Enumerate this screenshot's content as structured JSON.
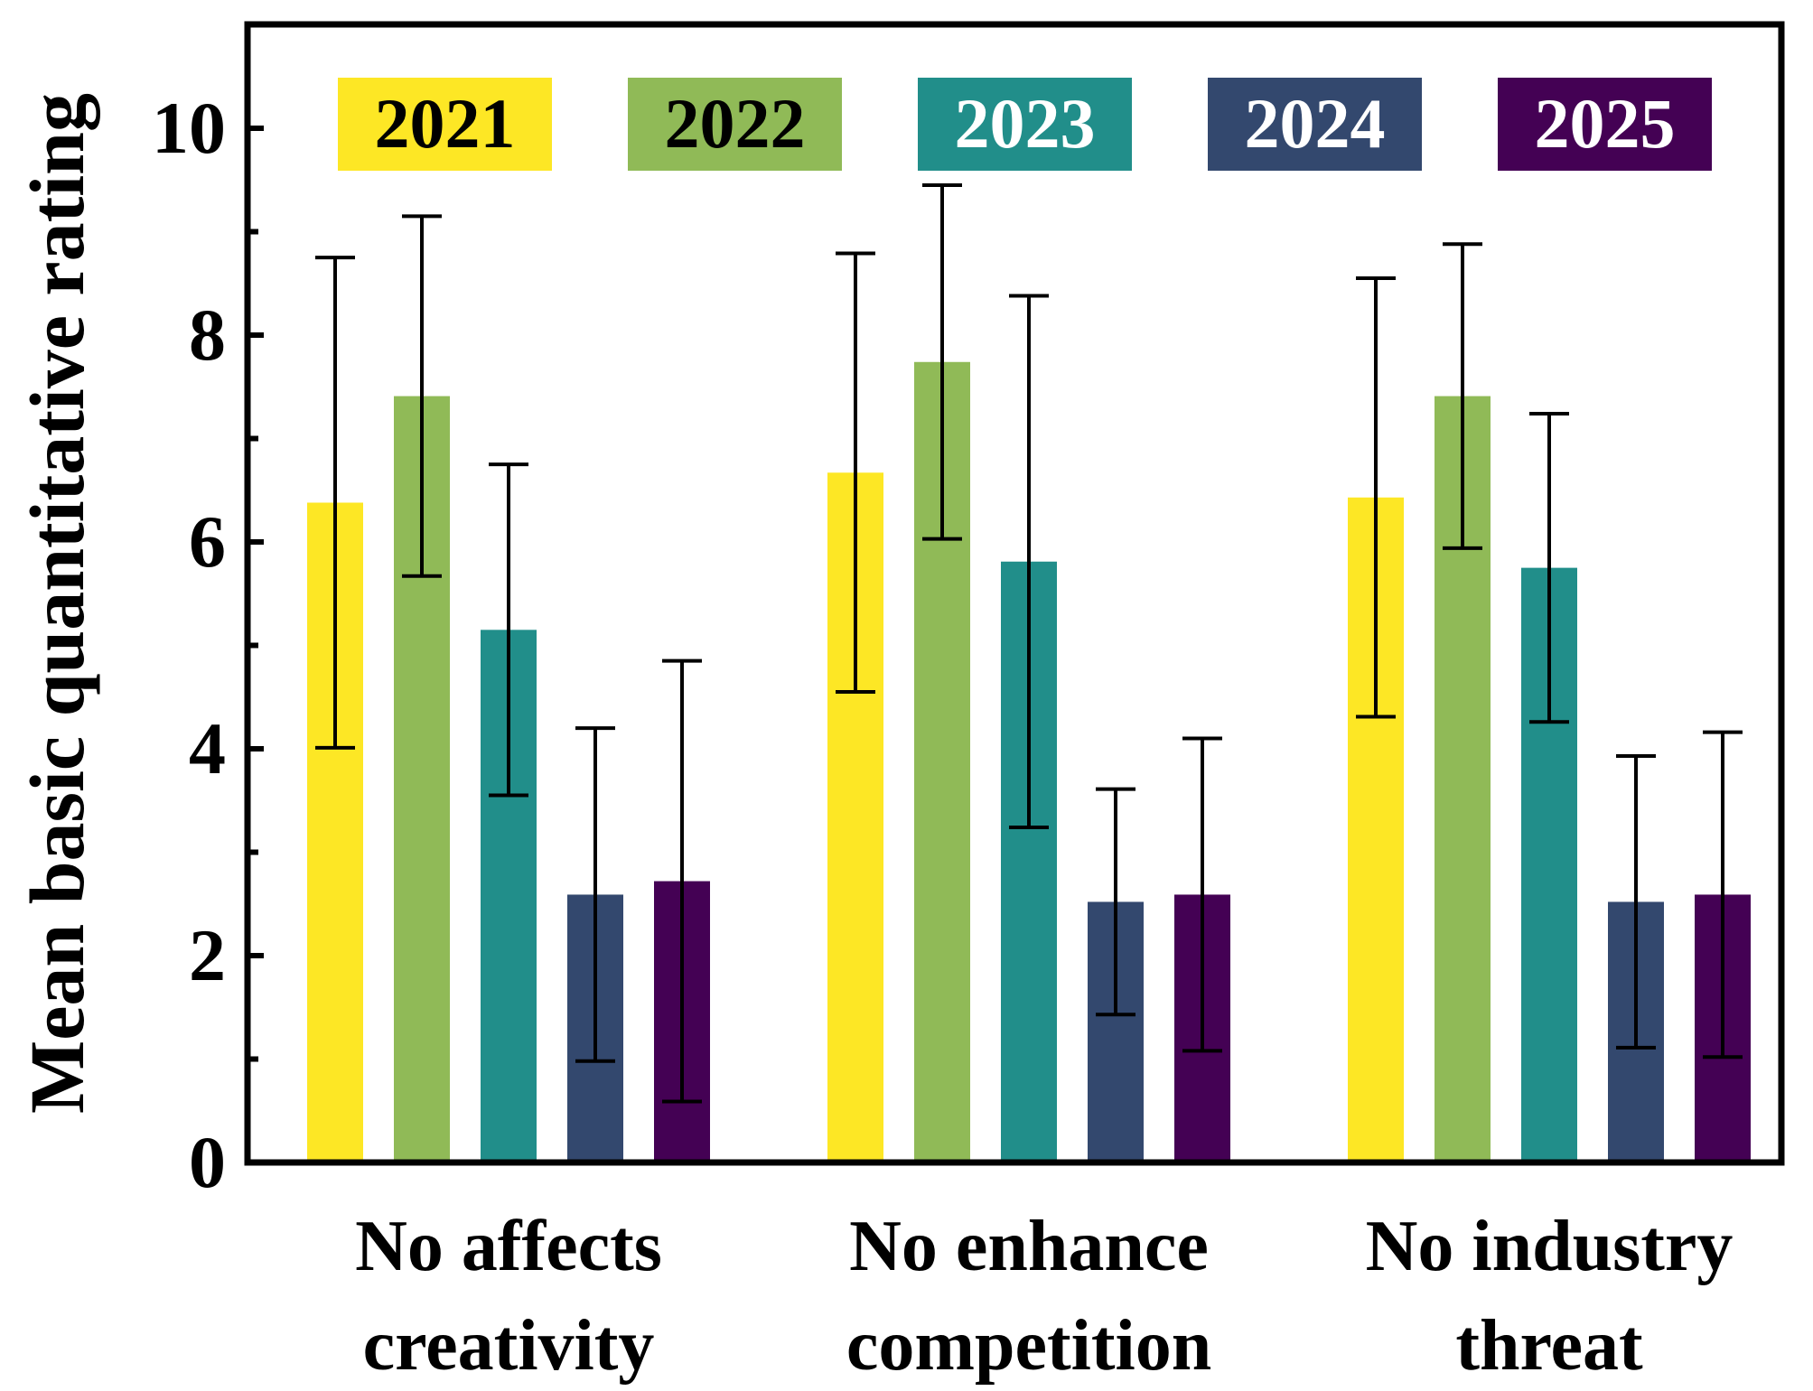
{
  "chart_data": {
    "type": "bar",
    "title": "",
    "xlabel": "",
    "ylabel": "Mean basic quantitative rating",
    "ylim": [
      0,
      11
    ],
    "yticks": [
      0,
      2,
      4,
      6,
      8,
      10
    ],
    "yticks_minor": [
      1,
      3,
      5,
      7,
      9
    ],
    "grid": false,
    "legend_position": "top, inside plot",
    "categories": [
      [
        "No affects",
        "creativity"
      ],
      [
        "No enhance",
        "competition"
      ],
      [
        "No industry",
        "threat"
      ]
    ],
    "series": [
      {
        "name": "2021",
        "color": "#fde725",
        "text_color": "#000000",
        "values": [
          6.38,
          6.67,
          6.43
        ],
        "error": [
          2.37,
          2.12,
          2.12
        ]
      },
      {
        "name": "2022",
        "color": "#90ba57",
        "text_color": "#000000",
        "values": [
          7.41,
          7.74,
          7.41
        ],
        "error": [
          1.74,
          1.71,
          1.47
        ]
      },
      {
        "name": "2023",
        "color": "#218e8a",
        "text_color": "#ffffff",
        "values": [
          5.15,
          5.81,
          5.75
        ],
        "error": [
          1.6,
          2.57,
          1.49
        ]
      },
      {
        "name": "2024",
        "color": "#33486e",
        "text_color": "#ffffff",
        "values": [
          2.59,
          2.52,
          2.52
        ],
        "error": [
          1.61,
          1.09,
          1.41
        ]
      },
      {
        "name": "2025",
        "color": "#440154",
        "text_color": "#ffffff",
        "values": [
          2.72,
          2.59,
          2.59
        ],
        "error": [
          2.13,
          1.51,
          1.57
        ]
      }
    ]
  }
}
